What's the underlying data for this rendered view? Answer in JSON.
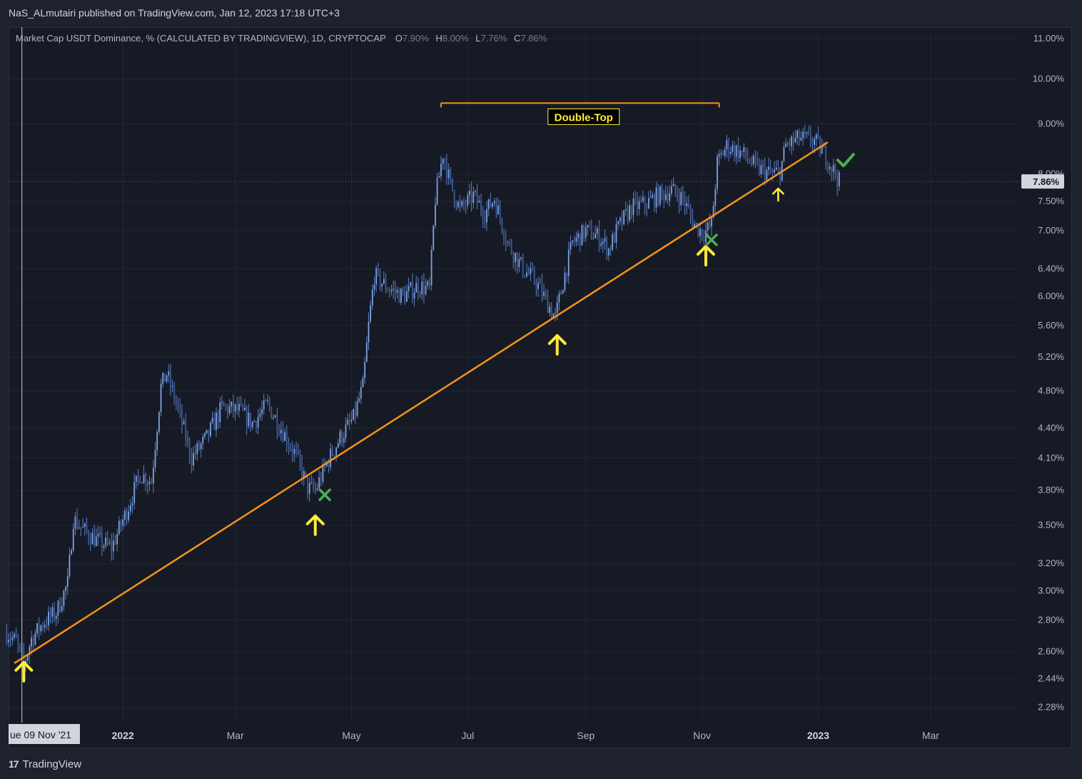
{
  "header": {
    "publisher": "NaS_ALmutairi published on TradingView.com, Jan 12, 2023 17:18 UTC+3"
  },
  "symbol": {
    "title": "Market Cap USDT Dominance, % (CALCULATED BY TRADINGVIEW), 1D, CRYPTOCAP",
    "ohlc": [
      {
        "key": "O",
        "value": "7.90%"
      },
      {
        "key": "H",
        "value": "8.00%"
      },
      {
        "key": "L",
        "value": "7.76%"
      },
      {
        "key": "C",
        "value": "7.86%"
      }
    ]
  },
  "footer": {
    "brand": "TradingView",
    "logo": "17"
  },
  "colors": {
    "background": "#161a25",
    "candle": "#5b7fc4",
    "trendline": "#f7931a",
    "arrow": "#ffeb3b",
    "cross": "#4caf50",
    "check": "#4caf50"
  },
  "chart_data": {
    "type": "candlestick",
    "scale": "log",
    "ylim": [
      2.2,
      11.3
    ],
    "xlim": [
      "2021-11-02",
      "2023-04-15"
    ],
    "y_ticks": [
      "11.00%",
      "10.00%",
      "9.00%",
      "8.00%",
      "7.50%",
      "7.00%",
      "6.40%",
      "6.00%",
      "5.60%",
      "5.20%",
      "4.80%",
      "4.40%",
      "4.10%",
      "3.80%",
      "3.50%",
      "3.20%",
      "3.00%",
      "2.80%",
      "2.60%",
      "2.44%",
      "2.28%"
    ],
    "y_tick_values": [
      11.0,
      10.0,
      9.0,
      8.0,
      7.5,
      7.0,
      6.4,
      6.0,
      5.6,
      5.2,
      4.8,
      4.4,
      4.1,
      3.8,
      3.5,
      3.2,
      3.0,
      2.8,
      2.6,
      2.44,
      2.28
    ],
    "x_ticks": [
      {
        "label": "2022",
        "date": "2022-01-01",
        "bold": true
      },
      {
        "label": "Mar",
        "date": "2022-03-01",
        "bold": false
      },
      {
        "label": "May",
        "date": "2022-05-01",
        "bold": false
      },
      {
        "label": "Jul",
        "date": "2022-07-01",
        "bold": false
      },
      {
        "label": "Sep",
        "date": "2022-09-01",
        "bold": false
      },
      {
        "label": "Nov",
        "date": "2022-11-01",
        "bold": false
      },
      {
        "label": "2023",
        "date": "2023-01-01",
        "bold": true
      },
      {
        "label": "Mar",
        "date": "2023-03-01",
        "bold": false
      }
    ],
    "last_price": {
      "label": "7.86%",
      "value": 7.86
    },
    "crosshair": {
      "label": "ue 09 Nov '21",
      "date": "2021-11-09"
    },
    "price_path": [
      [
        "2021-11-01",
        2.72
      ],
      [
        "2021-11-06",
        2.66
      ],
      [
        "2021-11-10",
        2.52
      ],
      [
        "2021-11-14",
        2.68
      ],
      [
        "2021-11-20",
        2.78
      ],
      [
        "2021-11-27",
        2.85
      ],
      [
        "2021-12-03",
        3.05
      ],
      [
        "2021-12-06",
        3.55
      ],
      [
        "2021-12-12",
        3.45
      ],
      [
        "2021-12-18",
        3.38
      ],
      [
        "2021-12-26",
        3.32
      ],
      [
        "2022-01-03",
        3.62
      ],
      [
        "2022-01-10",
        3.95
      ],
      [
        "2022-01-16",
        3.88
      ],
      [
        "2022-01-21",
        4.85
      ],
      [
        "2022-01-24",
        5.0
      ],
      [
        "2022-01-30",
        4.6
      ],
      [
        "2022-02-06",
        4.1
      ],
      [
        "2022-02-14",
        4.3
      ],
      [
        "2022-02-22",
        4.62
      ],
      [
        "2022-03-03",
        4.58
      ],
      [
        "2022-03-10",
        4.45
      ],
      [
        "2022-03-18",
        4.65
      ],
      [
        "2022-03-25",
        4.4
      ],
      [
        "2022-04-02",
        4.12
      ],
      [
        "2022-04-08",
        3.82
      ],
      [
        "2022-04-12",
        3.8
      ],
      [
        "2022-04-18",
        4.05
      ],
      [
        "2022-04-25",
        4.3
      ],
      [
        "2022-05-02",
        4.5
      ],
      [
        "2022-05-07",
        4.85
      ],
      [
        "2022-05-10",
        5.6
      ],
      [
        "2022-05-13",
        6.3
      ],
      [
        "2022-05-20",
        6.12
      ],
      [
        "2022-05-28",
        6.0
      ],
      [
        "2022-06-05",
        6.15
      ],
      [
        "2022-06-11",
        6.1
      ],
      [
        "2022-06-14",
        7.55
      ],
      [
        "2022-06-18",
        8.4
      ],
      [
        "2022-06-22",
        7.8
      ],
      [
        "2022-06-27",
        7.35
      ],
      [
        "2022-07-04",
        7.6
      ],
      [
        "2022-07-10",
        7.3
      ],
      [
        "2022-07-15",
        7.55
      ],
      [
        "2022-07-22",
        6.8
      ],
      [
        "2022-07-30",
        6.4
      ],
      [
        "2022-08-06",
        6.2
      ],
      [
        "2022-08-13",
        5.85
      ],
      [
        "2022-08-16",
        5.7
      ],
      [
        "2022-08-20",
        6.2
      ],
      [
        "2022-08-25",
        6.8
      ],
      [
        "2022-09-01",
        7.0
      ],
      [
        "2022-09-08",
        6.9
      ],
      [
        "2022-09-13",
        6.7
      ],
      [
        "2022-09-18",
        7.05
      ],
      [
        "2022-09-25",
        7.4
      ],
      [
        "2022-10-02",
        7.45
      ],
      [
        "2022-10-09",
        7.6
      ],
      [
        "2022-10-16",
        7.7
      ],
      [
        "2022-10-22",
        7.55
      ],
      [
        "2022-10-28",
        7.1
      ],
      [
        "2022-11-02",
        6.95
      ],
      [
        "2022-11-06",
        7.1
      ],
      [
        "2022-11-09",
        8.2
      ],
      [
        "2022-11-14",
        8.55
      ],
      [
        "2022-11-22",
        8.4
      ],
      [
        "2022-11-30",
        8.1
      ],
      [
        "2022-12-08",
        8.0
      ],
      [
        "2022-12-12",
        8.05
      ],
      [
        "2022-12-15",
        8.55
      ],
      [
        "2022-12-22",
        8.7
      ],
      [
        "2022-12-30",
        8.65
      ],
      [
        "2023-01-05",
        8.35
      ],
      [
        "2023-01-12",
        7.86
      ]
    ],
    "trendline": [
      [
        "2021-11-05",
        2.53
      ],
      [
        "2023-01-06",
        8.62
      ]
    ],
    "double_top": {
      "label": "Double-Top",
      "level": 9.45,
      "start": "2022-06-17",
      "end": "2022-11-10"
    },
    "touch_arrows": [
      {
        "date": "2021-11-10",
        "value": 2.48,
        "size": "large"
      },
      {
        "date": "2022-04-12",
        "value": 3.5,
        "size": "large"
      },
      {
        "date": "2022-08-17",
        "value": 5.35,
        "size": "large"
      },
      {
        "date": "2022-11-03",
        "value": 6.6,
        "size": "large"
      },
      {
        "date": "2022-12-11",
        "value": 7.62,
        "size": "small"
      }
    ],
    "failed_break_marks": [
      {
        "date": "2022-04-17",
        "value": 3.76
      },
      {
        "date": "2022-11-06",
        "value": 6.85
      }
    ],
    "confirmation_mark": {
      "date": "2023-01-15",
      "value": 8.25
    }
  }
}
